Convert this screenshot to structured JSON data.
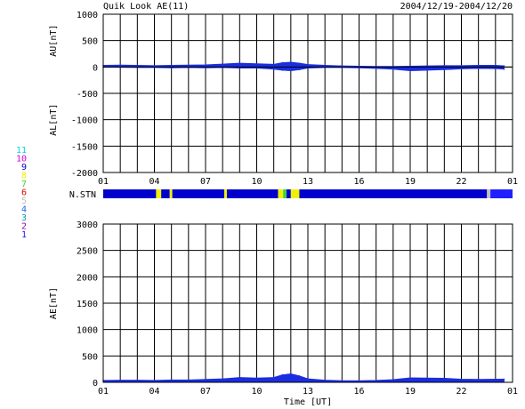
{
  "header": {
    "title": "Quik Look AE(11)",
    "date_range": "2004/12/19-2004/12/20"
  },
  "chart_data": [
    {
      "type": "area",
      "panel": "AU/AL",
      "ylabel_upper": "AU[nT]",
      "ylabel_lower": "AL[nT]",
      "ylim": [
        -2000,
        1000
      ],
      "yticks": [
        "1000",
        "500",
        "0",
        "-500",
        "-1000",
        "-1500",
        "-2000"
      ],
      "xlim": [
        0,
        24
      ],
      "xticks": [
        "01",
        "04",
        "07",
        "10",
        "13",
        "16",
        "19",
        "22",
        "01"
      ],
      "grid": true,
      "x": [
        0,
        1,
        2,
        3,
        4,
        5,
        6,
        7,
        8,
        9,
        10,
        10.5,
        11,
        11.5,
        12,
        13,
        14,
        15,
        16,
        17,
        18,
        19,
        20,
        21,
        22,
        23,
        23.5
      ],
      "series": [
        {
          "values": [
            30,
            35,
            30,
            25,
            30,
            35,
            40,
            55,
            70,
            60,
            50,
            80,
            90,
            70,
            45,
            30,
            20,
            15,
            10,
            10,
            15,
            20,
            25,
            25,
            30,
            30,
            20
          ]
        },
        {
          "values": [
            -5,
            -5,
            -10,
            -10,
            -15,
            -10,
            -15,
            -10,
            -20,
            -20,
            -40,
            -60,
            -70,
            -50,
            -20,
            -10,
            -10,
            -15,
            -25,
            -40,
            -70,
            -60,
            -50,
            -35,
            -25,
            -30,
            -40
          ]
        }
      ]
    },
    {
      "type": "bar",
      "panel": "N.STN",
      "label": "N.STN",
      "station_count_labels": [
        "11",
        "10",
        "9",
        "8",
        "7",
        "6",
        "5",
        "4",
        "3",
        "2",
        "1"
      ],
      "station_colors": [
        "#00d8d8",
        "#d800d8",
        "#0000cc",
        "#f0f000",
        "#40d040",
        "#e00000",
        "#c0c0c0",
        "#2060ff",
        "#00a0a0",
        "#a000a0",
        "#2020ff"
      ],
      "segments": [
        {
          "start": 0,
          "end": 3.1,
          "stations": 9
        },
        {
          "start": 3.1,
          "end": 3.4,
          "stations": 8
        },
        {
          "start": 3.4,
          "end": 3.9,
          "stations": 9
        },
        {
          "start": 3.9,
          "end": 4.05,
          "stations": 8
        },
        {
          "start": 4.05,
          "end": 7.1,
          "stations": 9
        },
        {
          "start": 7.1,
          "end": 7.25,
          "stations": 8
        },
        {
          "start": 7.25,
          "end": 10.25,
          "stations": 9
        },
        {
          "start": 10.25,
          "end": 10.55,
          "stations": 8
        },
        {
          "start": 10.55,
          "end": 10.75,
          "stations": 7
        },
        {
          "start": 10.75,
          "end": 11,
          "stations": 9
        },
        {
          "start": 11,
          "end": 11.5,
          "stations": 8
        },
        {
          "start": 11.5,
          "end": 22.5,
          "stations": 9
        },
        {
          "start": 22.5,
          "end": 22.7,
          "stations": 5
        },
        {
          "start": 22.7,
          "end": 24,
          "stations": 1
        }
      ]
    },
    {
      "type": "area",
      "panel": "AE",
      "ylabel": "AE[nT]",
      "xlabel": "Time [UT]",
      "ylim": [
        0,
        3000
      ],
      "yticks": [
        "3000",
        "2500",
        "2000",
        "1500",
        "1000",
        "500",
        "0"
      ],
      "xlim": [
        0,
        24
      ],
      "xticks": [
        "01",
        "04",
        "07",
        "10",
        "13",
        "16",
        "19",
        "22",
        "01"
      ],
      "grid": true,
      "x": [
        0,
        1,
        2,
        3,
        4,
        5,
        6,
        7,
        8,
        9,
        10,
        10.5,
        11,
        11.5,
        12,
        13,
        14,
        15,
        16,
        17,
        18,
        19,
        20,
        21,
        22,
        23,
        23.5
      ],
      "series": [
        {
          "values": [
            35,
            40,
            40,
            35,
            45,
            45,
            55,
            65,
            90,
            80,
            90,
            140,
            160,
            120,
            65,
            40,
            30,
            30,
            35,
            50,
            85,
            80,
            75,
            60,
            55,
            60,
            60
          ]
        }
      ]
    }
  ]
}
